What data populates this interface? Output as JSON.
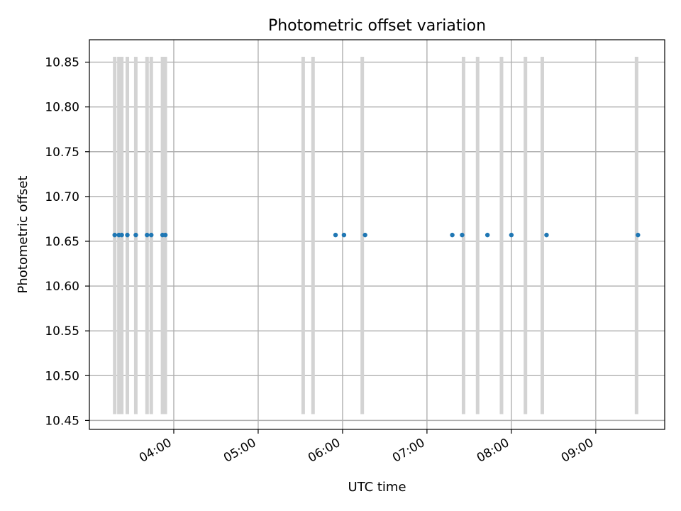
{
  "chart_data": {
    "type": "scatter",
    "title": "Photometric offset variation",
    "xlabel": "UTC time",
    "ylabel": "Photometric offset",
    "grid": true,
    "x_ticks": [
      "04:00",
      "05:00",
      "06:00",
      "07:00",
      "08:00",
      "09:00"
    ],
    "y_ticks": [
      "10.45",
      "10.50",
      "10.55",
      "10.60",
      "10.65",
      "10.70",
      "10.75",
      "10.80",
      "10.85"
    ],
    "x_range": [
      "03:00",
      "09:49"
    ],
    "y_range": [
      10.44,
      10.875
    ],
    "band_range": [
      10.457,
      10.856
    ],
    "colors": {
      "points": "#1f77b4",
      "bands": "#d3d3d3",
      "grid": "#b0b0b0",
      "axis": "#000000"
    },
    "series": [
      {
        "x": [
          "03:18",
          "03:21",
          "03:23",
          "03:27",
          "03:33",
          "03:41",
          "03:44",
          "03:52",
          "03:54",
          "05:55",
          "06:01",
          "06:16",
          "07:18",
          "07:25",
          "07:43",
          "08:00",
          "08:25",
          "09:30"
        ],
        "y": [
          10.657,
          10.657,
          10.657,
          10.657,
          10.657,
          10.657,
          10.657,
          10.657,
          10.657,
          10.657,
          10.657,
          10.657,
          10.657,
          10.657,
          10.657,
          10.657,
          10.657,
          10.657
        ]
      }
    ],
    "bands": [
      "03:18",
      "03:21",
      "03:23",
      "03:27",
      "03:33",
      "03:41",
      "03:44",
      "03:52",
      "03:54",
      "05:32",
      "05:39",
      "06:14",
      "07:26",
      "07:36",
      "07:53",
      "08:10",
      "08:22",
      "09:29"
    ]
  }
}
